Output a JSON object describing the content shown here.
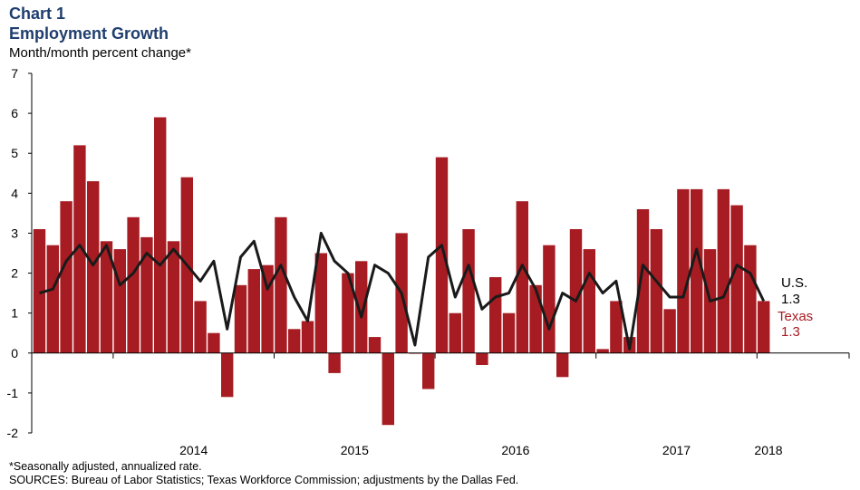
{
  "header": {
    "number": "Chart 1",
    "title": "Employment Growth",
    "subtitle": "Month/month  percent change*"
  },
  "footer": {
    "footnote": "*Seasonally adjusted, annualized rate.",
    "sources": "SOURCES: Bureau of Labor Statistics; Texas Workforce Commission; adjustments by the Dallas Fed."
  },
  "colors": {
    "texas_bar": "#a61c22",
    "us_line": "#1a1a1a",
    "texas_label": "#a61c22",
    "us_label": "#000000"
  },
  "end_labels": {
    "us_name": "U.S.",
    "us_value": "1.3",
    "texas_name": "Texas",
    "texas_value": "1.3"
  },
  "chart_data": {
    "type": "bar",
    "title": "Employment Growth",
    "ylabel": "Month/month  percent change*",
    "ylim": [
      -2,
      7
    ],
    "yticks": [
      -2,
      -1,
      0,
      1,
      2,
      3,
      4,
      5,
      6,
      7
    ],
    "x_year_labels": [
      "2014",
      "2015",
      "2016",
      "2017",
      "2018"
    ],
    "x_start": "2013-07",
    "x_end": "2018-01",
    "grid": false,
    "series": [
      {
        "name": "Texas",
        "type": "bar",
        "values": [
          3.1,
          2.7,
          3.8,
          5.2,
          4.3,
          2.8,
          2.6,
          3.4,
          2.9,
          5.9,
          2.8,
          4.4,
          1.3,
          0.5,
          -1.1,
          1.7,
          2.1,
          2.2,
          3.4,
          0.6,
          0.8,
          2.5,
          -0.5,
          2.0,
          2.3,
          0.4,
          -1.8,
          3.0,
          0.0,
          -0.9,
          4.9,
          1.0,
          3.1,
          -0.3,
          1.9,
          1.0,
          3.8,
          1.7,
          2.7,
          -0.6,
          3.1,
          2.6,
          0.1,
          1.3,
          0.4,
          3.6,
          3.1,
          1.1,
          4.1,
          4.1,
          2.6,
          4.1,
          3.7,
          2.7,
          1.3
        ]
      },
      {
        "name": "U.S.",
        "type": "line",
        "values": [
          1.5,
          1.6,
          2.3,
          2.7,
          2.2,
          2.7,
          1.7,
          2.0,
          2.5,
          2.2,
          2.6,
          2.2,
          1.8,
          2.3,
          0.6,
          2.4,
          2.8,
          1.6,
          2.2,
          1.4,
          0.8,
          3.0,
          2.3,
          2.0,
          0.9,
          2.2,
          2.0,
          1.5,
          0.2,
          2.4,
          2.7,
          1.4,
          2.2,
          1.1,
          1.4,
          1.5,
          2.2,
          1.6,
          0.6,
          1.5,
          1.3,
          2.0,
          1.5,
          1.8,
          0.1,
          2.2,
          1.8,
          1.4,
          1.4,
          2.6,
          1.3,
          1.4,
          2.2,
          2.0,
          1.3
        ]
      }
    ]
  }
}
